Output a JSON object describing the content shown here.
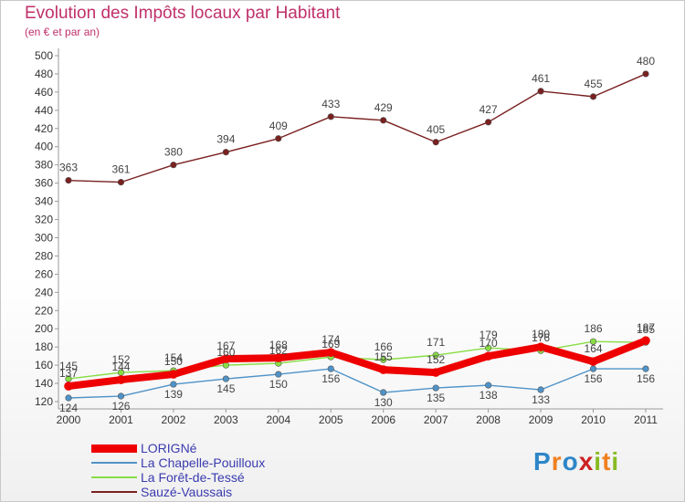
{
  "chart_data": {
    "type": "line",
    "title": "Evolution des Impôts locaux par Habitant",
    "subtitle": "(en € et par an)",
    "xlabel": "",
    "ylabel": "",
    "ylim": [
      120,
      500
    ],
    "yticks": [
      120,
      140,
      160,
      180,
      200,
      220,
      240,
      260,
      280,
      300,
      320,
      340,
      360,
      380,
      400,
      420,
      440,
      460,
      480,
      500
    ],
    "grid": false,
    "legend_position": "bottom-left",
    "categories": [
      "2000",
      "2001",
      "2002",
      "2003",
      "2004",
      "2005",
      "2006",
      "2007",
      "2008",
      "2009",
      "2010",
      "2011"
    ],
    "series": [
      {
        "name": "LORIGNé",
        "color": "#ee0000",
        "values": [
          137,
          144,
          150,
          167,
          168,
          174,
          155,
          152,
          170,
          180,
          164,
          187
        ],
        "labels": [
          "137",
          "144",
          "150",
          "167",
          "168",
          "174",
          "155",
          "152",
          "170",
          "180",
          "164",
          "187"
        ]
      },
      {
        "name": "La Chapelle-Pouilloux",
        "color": "#4f93c8",
        "values": [
          124,
          126,
          139,
          145,
          150,
          156,
          130,
          135,
          138,
          133,
          156,
          156
        ],
        "labels": [
          "124",
          "126",
          "139",
          "145",
          "150",
          "156",
          "130",
          "135",
          "138",
          "133",
          "156",
          "156"
        ]
      },
      {
        "name": "La Forêt-de-Tessé",
        "color": "#88dd44",
        "values": [
          145,
          152,
          154,
          160,
          162,
          169,
          166,
          171,
          179,
          176,
          186,
          185
        ],
        "labels": [
          "145",
          "152",
          "154",
          "160",
          "162",
          "169",
          "166",
          "171",
          "179",
          "176",
          "186",
          "185"
        ]
      },
      {
        "name": "Sauzé-Vaussais",
        "color": "#7a2020",
        "values": [
          363,
          361,
          380,
          394,
          409,
          433,
          429,
          405,
          427,
          461,
          455,
          480
        ],
        "labels": [
          "363",
          "361",
          "380",
          "394",
          "409",
          "433",
          "429",
          "405",
          "427",
          "461",
          "455",
          "480"
        ]
      }
    ]
  },
  "logo": {
    "letters": [
      "P",
      "r",
      "o",
      "x",
      "i",
      "t",
      "i"
    ],
    "colors": [
      "#2e86c8",
      "#f08020",
      "#2e86c8",
      "#cc2222",
      "#88bb22",
      "#f08020",
      "#88bb22"
    ]
  }
}
